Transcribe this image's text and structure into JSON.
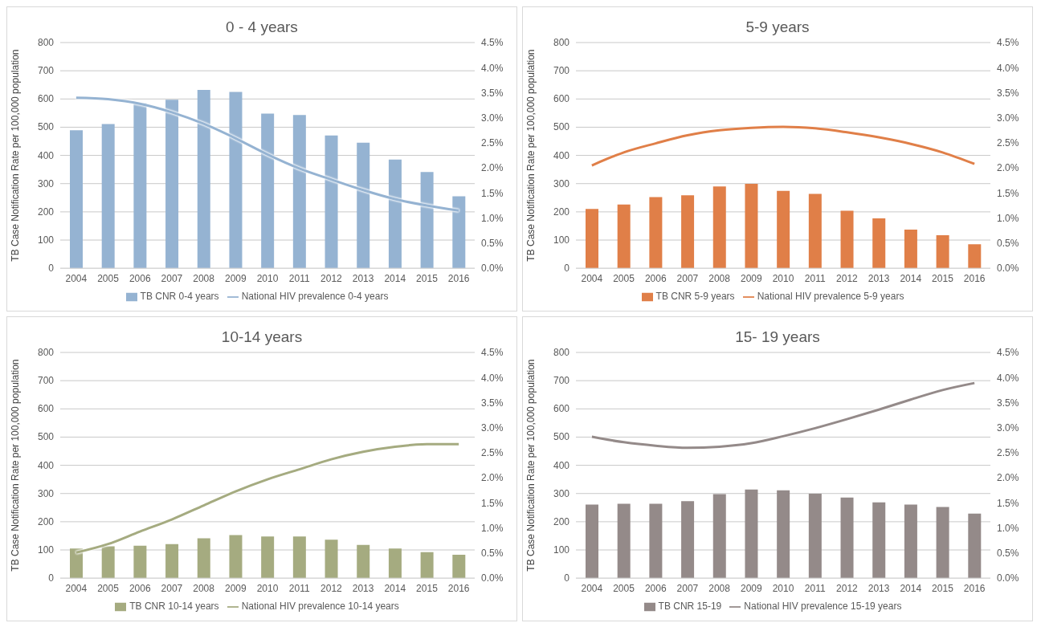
{
  "chart_data": [
    {
      "type": "bar",
      "title": "0 - 4 years",
      "ylabel": "TB Case Notification Rate per 100,000 population",
      "categories": [
        "2004",
        "2005",
        "2006",
        "2007",
        "2008",
        "2009",
        "2010",
        "2011",
        "2012",
        "2013",
        "2014",
        "2015",
        "2016"
      ],
      "series": [
        {
          "name": "TB CNR 0-4 years",
          "type": "bar",
          "color": "#95b3d2",
          "values": [
            489,
            511,
            585,
            597,
            632,
            625,
            548,
            543,
            471,
            445,
            385,
            341,
            255
          ]
        },
        {
          "name": "National HIV prevalence 0-4 years",
          "type": "line",
          "axis": "y2",
          "color": "#95b3d2",
          "values": [
            3.4,
            3.37,
            3.28,
            3.11,
            2.88,
            2.59,
            2.27,
            1.99,
            1.77,
            1.56,
            1.38,
            1.25,
            1.15
          ]
        }
      ],
      "ylim": [
        0,
        800
      ],
      "yticks": [
        0,
        100,
        200,
        300,
        400,
        500,
        600,
        700,
        800
      ],
      "y2lim": [
        0,
        4.5
      ],
      "y2ticks": [
        {
          "value": 0,
          "label": "0.0%"
        },
        {
          "value": 0.5,
          "label": "0.5%"
        },
        {
          "value": 1,
          "label": "1.0%"
        },
        {
          "value": 1.5,
          "label": "1.5%"
        },
        {
          "value": 2,
          "label": "2.0%"
        },
        {
          "value": 2.5,
          "label": "2.5%"
        },
        {
          "value": 3,
          "label": "3.0%"
        },
        {
          "value": 3.5,
          "label": "3.5%"
        },
        {
          "value": 4,
          "label": "4.0%"
        },
        {
          "value": 4.5,
          "label": "4.5%"
        }
      ],
      "grid": "y",
      "legend": "bottom",
      "marker": "none"
    },
    {
      "type": "bar",
      "title": "5-9 years",
      "ylabel": "TB Case Notification Rate per 100,000 population",
      "categories": [
        "2004",
        "2005",
        "2006",
        "2007",
        "2008",
        "2009",
        "2010",
        "2011",
        "2012",
        "2013",
        "2014",
        "2015",
        "2016"
      ],
      "series": [
        {
          "name": "TB CNR 5-9 years",
          "type": "bar",
          "color": "#e07f48",
          "values": [
            210,
            226,
            252,
            259,
            290,
            299,
            274,
            264,
            204,
            177,
            137,
            117,
            85
          ]
        },
        {
          "name": "National HIV prevalence 5-9 years",
          "type": "line",
          "axis": "y2",
          "color": "#e07f48",
          "values": [
            2.05,
            2.31,
            2.49,
            2.65,
            2.75,
            2.8,
            2.82,
            2.79,
            2.71,
            2.61,
            2.48,
            2.31,
            2.08
          ]
        }
      ],
      "ylim": [
        0,
        800
      ],
      "yticks": [
        0,
        100,
        200,
        300,
        400,
        500,
        600,
        700,
        800
      ],
      "y2lim": [
        0,
        4.5
      ],
      "y2ticks": [
        {
          "value": 0,
          "label": "0.0%"
        },
        {
          "value": 0.5,
          "label": "0.5%"
        },
        {
          "value": 1,
          "label": "1.0%"
        },
        {
          "value": 1.5,
          "label": "1.5%"
        },
        {
          "value": 2,
          "label": "2.0%"
        },
        {
          "value": 2.5,
          "label": "2.5%"
        },
        {
          "value": 3,
          "label": "3.0%"
        },
        {
          "value": 3.5,
          "label": "3.5%"
        },
        {
          "value": 4,
          "label": "4.0%"
        },
        {
          "value": 4.5,
          "label": "4.5%"
        }
      ],
      "grid": "y",
      "legend": "bottom",
      "marker": "none"
    },
    {
      "type": "bar",
      "title": "10-14 years",
      "ylabel": "TB Case Notification Rate per 100,000 population",
      "categories": [
        "2004",
        "2005",
        "2006",
        "2007",
        "2008",
        "2009",
        "2010",
        "2011",
        "2012",
        "2013",
        "2014",
        "2015",
        "2016"
      ],
      "series": [
        {
          "name": "TB CNR 10-14 years",
          "type": "bar",
          "color": "#a5ab80",
          "values": [
            105,
            113,
            115,
            121,
            141,
            153,
            148,
            148,
            136,
            118,
            105,
            92,
            83
          ]
        },
        {
          "name": "National HIV prevalence 10-14 years",
          "type": "line",
          "axis": "y2",
          "color": "#a5ab80",
          "values": [
            0.51,
            0.68,
            0.93,
            1.17,
            1.45,
            1.73,
            1.97,
            2.17,
            2.37,
            2.52,
            2.62,
            2.67,
            2.67
          ]
        }
      ],
      "ylim": [
        0,
        800
      ],
      "yticks": [
        0,
        100,
        200,
        300,
        400,
        500,
        600,
        700,
        800
      ],
      "y2lim": [
        0,
        4.5
      ],
      "y2ticks": [
        {
          "value": 0,
          "label": "0.0%"
        },
        {
          "value": 0.5,
          "label": "0.5%"
        },
        {
          "value": 1,
          "label": "1.0%"
        },
        {
          "value": 1.5,
          "label": "1.5%"
        },
        {
          "value": 2,
          "label": "2.0%"
        },
        {
          "value": 2.5,
          "label": "2.5%"
        },
        {
          "value": 3,
          "label": "3.0%"
        },
        {
          "value": 3.5,
          "label": "3.5%"
        },
        {
          "value": 4,
          "label": "4.0%"
        },
        {
          "value": 4.5,
          "label": "4.5%"
        }
      ],
      "grid": "y",
      "legend": "bottom",
      "marker": "none"
    },
    {
      "type": "bar",
      "title": "15- 19 years",
      "ylabel": "TB Case Notification Rate per 100,000 population",
      "categories": [
        "2004",
        "2005",
        "2006",
        "2007",
        "2008",
        "2009",
        "2010",
        "2011",
        "2012",
        "2013",
        "2014",
        "2015",
        "2016"
      ],
      "series": [
        {
          "name": "TB CNR 15-19",
          "type": "bar",
          "color": "#948a89",
          "values": [
            261,
            264,
            264,
            273,
            298,
            314,
            311,
            299,
            286,
            269,
            261,
            252,
            229
          ]
        },
        {
          "name": "National HIV prevalence 15-19 years",
          "type": "line",
          "axis": "y2",
          "color": "#948a89",
          "values": [
            2.82,
            2.71,
            2.64,
            2.6,
            2.62,
            2.69,
            2.83,
            2.99,
            3.17,
            3.36,
            3.56,
            3.75,
            3.89
          ]
        }
      ],
      "ylim": [
        0,
        800
      ],
      "yticks": [
        0,
        100,
        200,
        300,
        400,
        500,
        600,
        700,
        800
      ],
      "y2lim": [
        0,
        4.5
      ],
      "y2ticks": [
        {
          "value": 0,
          "label": "0.0%"
        },
        {
          "value": 0.5,
          "label": "0.5%"
        },
        {
          "value": 1,
          "label": "1.0%"
        },
        {
          "value": 1.5,
          "label": "1.5%"
        },
        {
          "value": 2,
          "label": "2.0%"
        },
        {
          "value": 2.5,
          "label": "2.5%"
        },
        {
          "value": 3,
          "label": "3.0%"
        },
        {
          "value": 3.5,
          "label": "3.5%"
        },
        {
          "value": 4,
          "label": "4.0%"
        },
        {
          "value": 4.5,
          "label": "4.5%"
        }
      ],
      "grid": "y",
      "legend": "bottom",
      "marker": "none"
    }
  ]
}
